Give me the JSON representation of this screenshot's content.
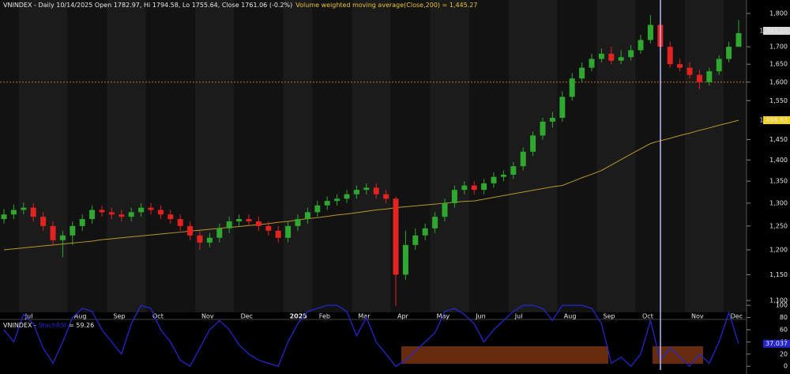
{
  "chart_data": [
    {
      "type": "candlestick",
      "title": "VNINDEX - Daily 10/14/2025 Open 1782.97, Hi 1794.58, Lo 1755.64, Close 1761.06 (-0.2%)",
      "categories": [
        null,
        null,
        "Jul",
        null,
        null,
        null,
        null,
        "Aug",
        null,
        null,
        null,
        "Sep",
        null,
        null,
        null,
        "Oct",
        null,
        null,
        null,
        null,
        "Nov",
        null,
        null,
        null,
        "Dec",
        null,
        null,
        null,
        null,
        "2025",
        null,
        null,
        "Feb",
        null,
        null,
        null,
        "Mar",
        null,
        null,
        null,
        "Apr",
        null,
        null,
        null,
        "May",
        null,
        null,
        null,
        "Jun",
        null,
        null,
        null,
        "Jul",
        null,
        null,
        null,
        null,
        "Aug",
        null,
        null,
        null,
        "Sep",
        null,
        null,
        null,
        "Oct",
        null,
        null,
        null,
        null,
        "Nov",
        null,
        null,
        null,
        "Dec",
        null
      ],
      "open": [
        1265,
        1275,
        1285,
        1290,
        1270,
        1250,
        1220,
        1230,
        1250,
        1265,
        1285,
        1280,
        1275,
        1270,
        1280,
        1290,
        1285,
        1275,
        1265,
        1250,
        1230,
        1215,
        1225,
        1245,
        1260,
        1265,
        1260,
        1250,
        1240,
        1225,
        1250,
        1265,
        1280,
        1295,
        1305,
        1310,
        1320,
        1330,
        1335,
        1320,
        1310,
        1150,
        1210,
        1230,
        1245,
        1270,
        1300,
        1330,
        1340,
        1330,
        1345,
        1360,
        1365,
        1385,
        1420,
        1460,
        1495,
        1505,
        1560,
        1610,
        1640,
        1665,
        1680,
        1660,
        1670,
        1690,
        1720,
        1765,
        1700,
        1650,
        1640,
        1620,
        1600,
        1630,
        1665,
        1700
      ],
      "high": [
        1287,
        1297,
        1302,
        1300,
        1280,
        1260,
        1240,
        1260,
        1275,
        1295,
        1295,
        1290,
        1285,
        1290,
        1300,
        1300,
        1295,
        1285,
        1275,
        1260,
        1240,
        1235,
        1255,
        1270,
        1275,
        1275,
        1270,
        1260,
        1250,
        1260,
        1275,
        1290,
        1305,
        1315,
        1320,
        1330,
        1340,
        1345,
        1345,
        1330,
        1315,
        1240,
        1245,
        1255,
        1280,
        1310,
        1340,
        1350,
        1350,
        1355,
        1370,
        1375,
        1395,
        1430,
        1470,
        1505,
        1520,
        1575,
        1625,
        1655,
        1680,
        1695,
        1700,
        1690,
        1705,
        1735,
        1795,
        1780,
        1715,
        1665,
        1655,
        1635,
        1640,
        1675,
        1715,
        1780
      ],
      "low": [
        1255,
        1265,
        1275,
        1260,
        1240,
        1210,
        1185,
        1210,
        1240,
        1255,
        1270,
        1265,
        1260,
        1260,
        1270,
        1275,
        1265,
        1255,
        1240,
        1220,
        1200,
        1205,
        1215,
        1235,
        1250,
        1250,
        1240,
        1230,
        1215,
        1215,
        1240,
        1255,
        1270,
        1285,
        1295,
        1300,
        1310,
        1320,
        1310,
        1300,
        1090,
        1140,
        1200,
        1220,
        1235,
        1260,
        1290,
        1320,
        1320,
        1320,
        1335,
        1350,
        1355,
        1375,
        1410,
        1450,
        1480,
        1495,
        1550,
        1600,
        1630,
        1655,
        1650,
        1650,
        1660,
        1680,
        1710,
        1690,
        1640,
        1630,
        1610,
        1580,
        1590,
        1620,
        1655,
        1700
      ],
      "close": [
        1275,
        1285,
        1290,
        1270,
        1250,
        1220,
        1230,
        1250,
        1265,
        1285,
        1280,
        1275,
        1270,
        1280,
        1290,
        1285,
        1275,
        1265,
        1250,
        1230,
        1215,
        1225,
        1245,
        1260,
        1265,
        1260,
        1250,
        1240,
        1225,
        1250,
        1265,
        1280,
        1295,
        1305,
        1310,
        1320,
        1330,
        1335,
        1320,
        1310,
        1150,
        1210,
        1230,
        1245,
        1270,
        1300,
        1330,
        1340,
        1330,
        1345,
        1360,
        1365,
        1385,
        1420,
        1460,
        1495,
        1505,
        1560,
        1610,
        1640,
        1665,
        1680,
        1660,
        1670,
        1690,
        1720,
        1765,
        1700,
        1650,
        1640,
        1620,
        1600,
        1630,
        1665,
        1700,
        1740
      ],
      "up_color": "#2fa82f",
      "down_color": "#e32222",
      "series": [
        {
          "name": "Volume weighted moving average(Close,200) = 1,445.27",
          "color": "#b8962a",
          "values": [
            1200,
            1202,
            1204,
            1206,
            1208,
            1210,
            1212,
            1214,
            1216,
            1218,
            1221,
            1223,
            1225,
            1227,
            1229,
            1231,
            1233,
            1235,
            1237,
            1239,
            1241,
            1243,
            1245,
            1247,
            1249,
            1251,
            1253,
            1255,
            1258,
            1260,
            1263,
            1266,
            1268,
            1271,
            1274,
            1276,
            1279,
            1282,
            1285,
            1287,
            1290,
            1292,
            1294,
            1296,
            1298,
            1300,
            1302,
            1304,
            1305,
            1309,
            1313,
            1317,
            1321,
            1325,
            1329,
            1333,
            1337,
            1340,
            1349,
            1358,
            1366,
            1375,
            1388,
            1401,
            1414,
            1427,
            1440,
            1447,
            1453,
            1460,
            1466,
            1473,
            1479,
            1486,
            1492,
            1498.83
          ]
        }
      ],
      "log_scale": true,
      "ylim": [
        1078,
        1842
      ],
      "yticks": [
        {
          "value": 1100,
          "label": "1,100"
        },
        {
          "value": 1150,
          "label": "1,150"
        },
        {
          "value": 1200,
          "label": "1,200"
        },
        {
          "value": 1250,
          "label": "1,250"
        },
        {
          "value": 1300,
          "label": "1,300"
        },
        {
          "value": 1350,
          "label": "1,350"
        },
        {
          "value": 1400,
          "label": "1,400"
        },
        {
          "value": 1450,
          "label": "1,450"
        },
        {
          "value": 1550,
          "label": "1,550"
        },
        {
          "value": 1600,
          "label": "1,600"
        },
        {
          "value": 1650,
          "label": "1,650"
        },
        {
          "value": 1700,
          "label": "1,700"
        },
        {
          "value": 1800,
          "label": "1,800"
        }
      ],
      "reference_line": 1600,
      "price_markers": [
        {
          "value": 1747.17,
          "label": "1,747.17",
          "color": "#d8d8d8"
        },
        {
          "value": 1498.83,
          "label": "1,498.83",
          "color": "#f2d21b"
        }
      ]
    },
    {
      "type": "line",
      "title": "VNINDEX - ",
      "series": [
        {
          "name": "StochRSI",
          "color": "#2626c8",
          "values": [
            60,
            40,
            85,
            70,
            30,
            5,
            40,
            80,
            95,
            90,
            60,
            40,
            20,
            70,
            100,
            95,
            60,
            40,
            10,
            0,
            30,
            60,
            75,
            60,
            35,
            20,
            10,
            5,
            0,
            40,
            70,
            90,
            95,
            100,
            100,
            90,
            50,
            80,
            40,
            20,
            0,
            10,
            25,
            40,
            55,
            90,
            95,
            85,
            70,
            40,
            60,
            75,
            90,
            100,
            100,
            95,
            75,
            100,
            100,
            100,
            95,
            70,
            5,
            15,
            0,
            20,
            75,
            10,
            30,
            15,
            0,
            20,
            5,
            40,
            88,
            37.037
          ]
        }
      ],
      "subtitle": "= 59.26",
      "ylim": [
        -1,
        108
      ],
      "yticks": [
        0,
        20,
        40,
        60,
        80,
        100
      ],
      "last_marker": {
        "value": 37.037,
        "label": "37.037",
        "color": "#2626c8"
      }
    }
  ]
}
